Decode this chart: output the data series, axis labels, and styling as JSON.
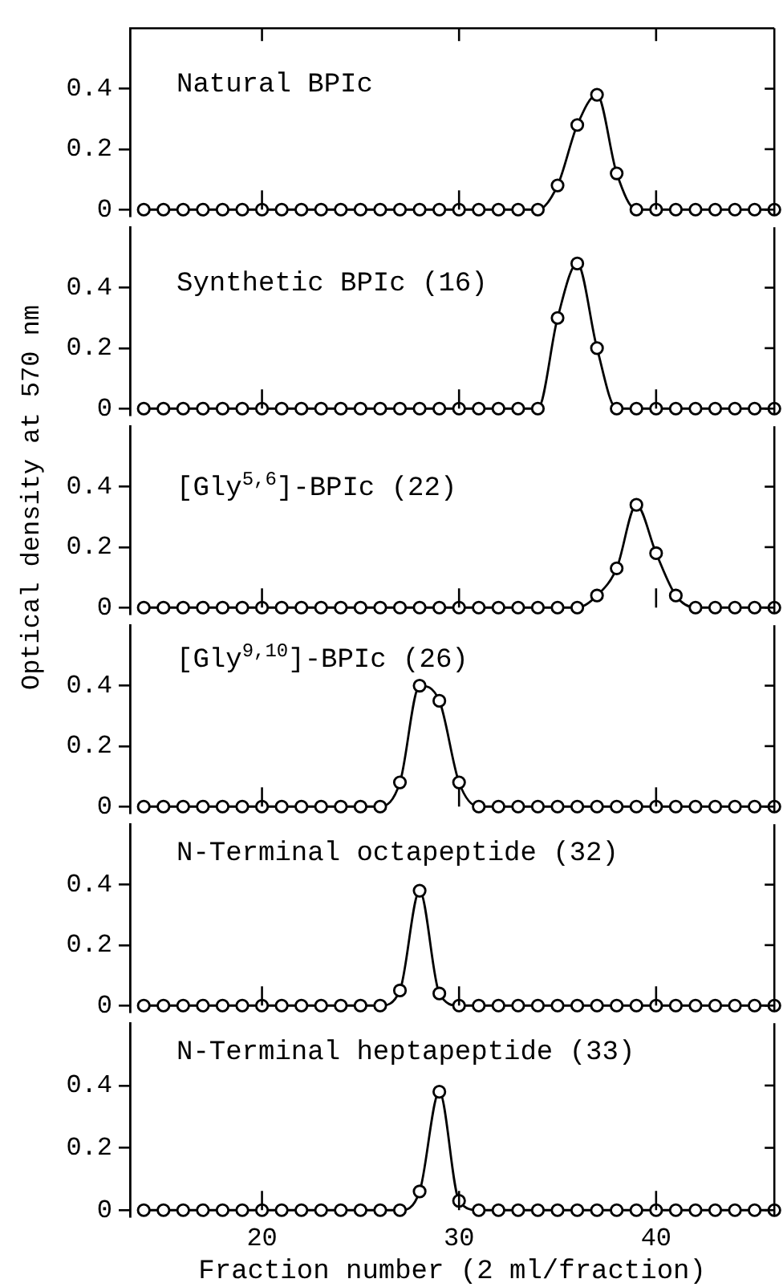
{
  "chart_data": [
    {
      "type": "line",
      "title": "Natural BPIc",
      "x": [
        14,
        15,
        16,
        17,
        18,
        19,
        20,
        21,
        22,
        23,
        24,
        25,
        26,
        27,
        28,
        29,
        30,
        31,
        32,
        33,
        34,
        35,
        36,
        37,
        38,
        39,
        40,
        41,
        42,
        43,
        44,
        45,
        46
      ],
      "series": [
        {
          "color": "#000000",
          "values": [
            0,
            0,
            0,
            0,
            0,
            0,
            0,
            0,
            0,
            0,
            0,
            0,
            0,
            0,
            0,
            0,
            0,
            0,
            0,
            0,
            0,
            0.08,
            0.28,
            0.38,
            0.12,
            0,
            0,
            0,
            0,
            0,
            0,
            0,
            0
          ]
        }
      ],
      "xlim": [
        13.3,
        46
      ],
      "xticks": [
        {
          "value": 20,
          "label": null
        },
        {
          "value": 30,
          "label": null
        },
        {
          "value": 40,
          "label": null
        }
      ],
      "ylim": [
        -0.02,
        0.6
      ],
      "yticks": [
        0,
        0.2,
        0.4
      ],
      "marker": "circle",
      "tick_labels": "y"
    },
    {
      "type": "line",
      "title": "Synthetic BPIc (16)",
      "x": [
        14,
        15,
        16,
        17,
        18,
        19,
        20,
        21,
        22,
        23,
        24,
        25,
        26,
        27,
        28,
        29,
        30,
        31,
        32,
        33,
        34,
        35,
        36,
        37,
        38,
        39,
        40,
        41,
        42,
        43,
        44,
        45,
        46
      ],
      "series": [
        {
          "color": "#000000",
          "values": [
            0,
            0,
            0,
            0,
            0,
            0,
            0,
            0,
            0,
            0,
            0,
            0,
            0,
            0,
            0,
            0,
            0,
            0,
            0,
            0,
            0,
            0.3,
            0.48,
            0.2,
            0,
            0,
            0,
            0,
            0,
            0,
            0,
            0,
            0
          ]
        }
      ],
      "xlim": [
        13.3,
        46
      ],
      "xticks": [
        {
          "value": 20,
          "label": null
        },
        {
          "value": 30,
          "label": null
        },
        {
          "value": 40,
          "label": null
        }
      ],
      "ylim": [
        -0.02,
        0.6
      ],
      "yticks": [
        0,
        0.2,
        0.4
      ],
      "marker": "circle",
      "tick_labels": "y"
    },
    {
      "type": "line",
      "title": "[Gly$^{5,6}$]-BPIc (22)",
      "ylabel": "Optical density at 570 nm",
      "x": [
        14,
        15,
        16,
        17,
        18,
        19,
        20,
        21,
        22,
        23,
        24,
        25,
        26,
        27,
        28,
        29,
        30,
        31,
        32,
        33,
        34,
        35,
        36,
        37,
        38,
        39,
        40,
        41,
        42,
        43,
        44,
        45,
        46
      ],
      "series": [
        {
          "color": "#000000",
          "values": [
            0,
            0,
            0,
            0,
            0,
            0,
            0,
            0,
            0,
            0,
            0,
            0,
            0,
            0,
            0,
            0,
            0,
            0,
            0,
            0,
            0,
            0,
            0,
            0.04,
            0.13,
            0.34,
            0.18,
            0.04,
            0,
            0,
            0,
            0,
            0
          ]
        }
      ],
      "xlim": [
        13.3,
        46
      ],
      "xticks": [
        {
          "value": 20,
          "label": null
        },
        {
          "value": 30,
          "label": null
        },
        {
          "value": 40,
          "label": null
        }
      ],
      "ylim": [
        -0.02,
        0.6
      ],
      "yticks": [
        0,
        0.2,
        0.4
      ],
      "marker": "circle",
      "tick_labels": "y"
    },
    {
      "type": "line",
      "title": "[Gly$^{9,10}$]-BPIc (26)",
      "x": [
        14,
        15,
        16,
        17,
        18,
        19,
        20,
        21,
        22,
        23,
        24,
        25,
        26,
        27,
        28,
        29,
        30,
        31,
        32,
        33,
        34,
        35,
        36,
        37,
        38,
        39,
        40,
        41,
        42,
        43,
        44,
        45,
        46
      ],
      "series": [
        {
          "color": "#000000",
          "values": [
            0,
            0,
            0,
            0,
            0,
            0,
            0,
            0,
            0,
            0,
            0,
            0,
            0,
            0.08,
            0.4,
            0.35,
            0.08,
            0,
            0,
            0,
            0,
            0,
            0,
            0,
            0,
            0,
            0,
            0,
            0,
            0,
            0,
            0,
            0
          ]
        }
      ],
      "xlim": [
        13.3,
        46
      ],
      "xticks": [
        {
          "value": 20,
          "label": null
        },
        {
          "value": 30,
          "label": null
        },
        {
          "value": 40,
          "label": null
        }
      ],
      "ylim": [
        -0.02,
        0.6
      ],
      "yticks": [
        0,
        0.2,
        0.4
      ],
      "marker": "circle",
      "tick_labels": "y"
    },
    {
      "type": "line",
      "title": "N-Terminal octapeptide (32)",
      "x": [
        14,
        15,
        16,
        17,
        18,
        19,
        20,
        21,
        22,
        23,
        24,
        25,
        26,
        27,
        28,
        29,
        30,
        31,
        32,
        33,
        34,
        35,
        36,
        37,
        38,
        39,
        40,
        41,
        42,
        43,
        44,
        45,
        46
      ],
      "series": [
        {
          "color": "#000000",
          "values": [
            0,
            0,
            0,
            0,
            0,
            0,
            0,
            0,
            0,
            0,
            0,
            0,
            0,
            0.05,
            0.38,
            0.04,
            0,
            0,
            0,
            0,
            0,
            0,
            0,
            0,
            0,
            0,
            0,
            0,
            0,
            0,
            0,
            0,
            0
          ]
        }
      ],
      "xlim": [
        13.3,
        46
      ],
      "xticks": [
        {
          "value": 20,
          "label": null
        },
        {
          "value": 30,
          "label": null
        },
        {
          "value": 40,
          "label": null
        }
      ],
      "ylim": [
        -0.02,
        0.6
      ],
      "yticks": [
        0,
        0.2,
        0.4
      ],
      "marker": "circle",
      "tick_labels": "y"
    },
    {
      "type": "line",
      "title": "N-Terminal heptapeptide (33)",
      "xlabel": "Fraction number (2 ml/fraction)",
      "x": [
        14,
        15,
        16,
        17,
        18,
        19,
        20,
        21,
        22,
        23,
        24,
        25,
        26,
        27,
        28,
        29,
        30,
        31,
        32,
        33,
        34,
        35,
        36,
        37,
        38,
        39,
        40,
        41,
        42,
        43,
        44,
        45,
        46
      ],
      "series": [
        {
          "color": "#000000",
          "values": [
            0,
            0,
            0,
            0,
            0,
            0,
            0,
            0,
            0,
            0,
            0,
            0,
            0,
            0,
            0.06,
            0.38,
            0.03,
            0,
            0,
            0,
            0,
            0,
            0,
            0,
            0,
            0,
            0,
            0,
            0,
            0,
            0,
            0,
            0
          ]
        }
      ],
      "xlim": [
        13.3,
        46
      ],
      "xticks": [
        20,
        30,
        40
      ],
      "ylim": [
        -0.02,
        0.6
      ],
      "yticks": [
        0,
        0.2,
        0.4
      ],
      "marker": "circle"
    }
  ]
}
